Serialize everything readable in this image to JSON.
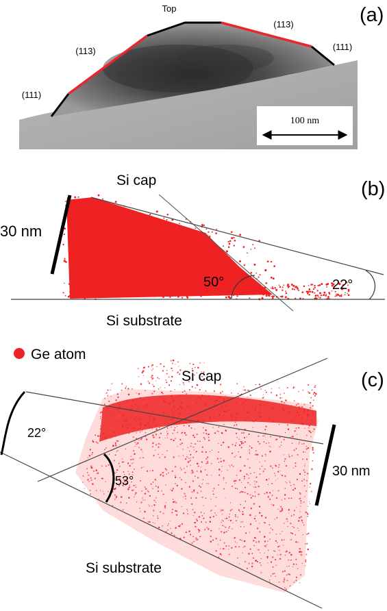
{
  "panel_a": {
    "label": "(a)",
    "facets": {
      "top": "Top",
      "left_113": "(113)",
      "right_113": "(113)",
      "left_111": "(111)",
      "right_111": "(111)"
    },
    "scale_bar": "100 nm",
    "colors": {
      "facet_111": "#000000",
      "facet_113": "#e8262b",
      "tem_gray": "#8a8a8a"
    }
  },
  "panel_b": {
    "label": "(b)",
    "cap": "Si cap",
    "substrate": "Si substrate",
    "scale_bar": "30 nm",
    "angle_1": "50°",
    "angle_2": "22°"
  },
  "legend": {
    "label": "Ge atom",
    "color": "#ee2222"
  },
  "panel_c": {
    "label": "(c)",
    "cap": "Si cap",
    "substrate": "Si substrate",
    "scale_bar": "30 nm",
    "angle_1": "22°",
    "angle_2": "53°"
  }
}
